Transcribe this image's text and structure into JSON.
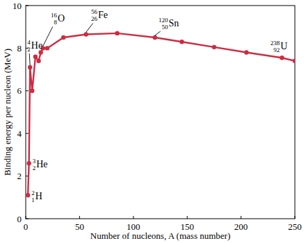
{
  "chart_data": {
    "type": "line",
    "x_label": "Number of nucleons, A (mass number)",
    "y_label": "Binding energy per nucleon (MeV)",
    "x": [
      2,
      3,
      4,
      6,
      9,
      12,
      14,
      16,
      20,
      35,
      56,
      85,
      120,
      145,
      175,
      205,
      238,
      250
    ],
    "series": [
      {
        "color": "#cc2c42",
        "marker": "circle",
        "line_style": "solid",
        "values": [
          1.1,
          2.6,
          7.1,
          6.0,
          7.6,
          7.4,
          7.8,
          8.0,
          8.0,
          8.5,
          8.65,
          8.7,
          8.5,
          8.3,
          8.05,
          7.8,
          7.55,
          7.4
        ]
      }
    ],
    "xlim": [
      0,
      250
    ],
    "xticks": [
      0,
      50,
      100,
      150,
      200,
      250
    ],
    "ylim": [
      0,
      10
    ],
    "yticks": [
      0,
      2,
      4,
      6,
      8,
      10
    ],
    "grid": false,
    "annotations": [
      {
        "A": 2,
        "Z": 1,
        "symbol": "H"
      },
      {
        "A": 3,
        "Z": 2,
        "symbol": "He"
      },
      {
        "A": 4,
        "Z": 2,
        "symbol": "He"
      },
      {
        "A": 16,
        "Z": 8,
        "symbol": "O"
      },
      {
        "A": 56,
        "Z": 26,
        "symbol": "Fe"
      },
      {
        "A": 120,
        "Z": 50,
        "symbol": "Sn"
      },
      {
        "A": 238,
        "Z": 92,
        "symbol": "U"
      }
    ]
  }
}
